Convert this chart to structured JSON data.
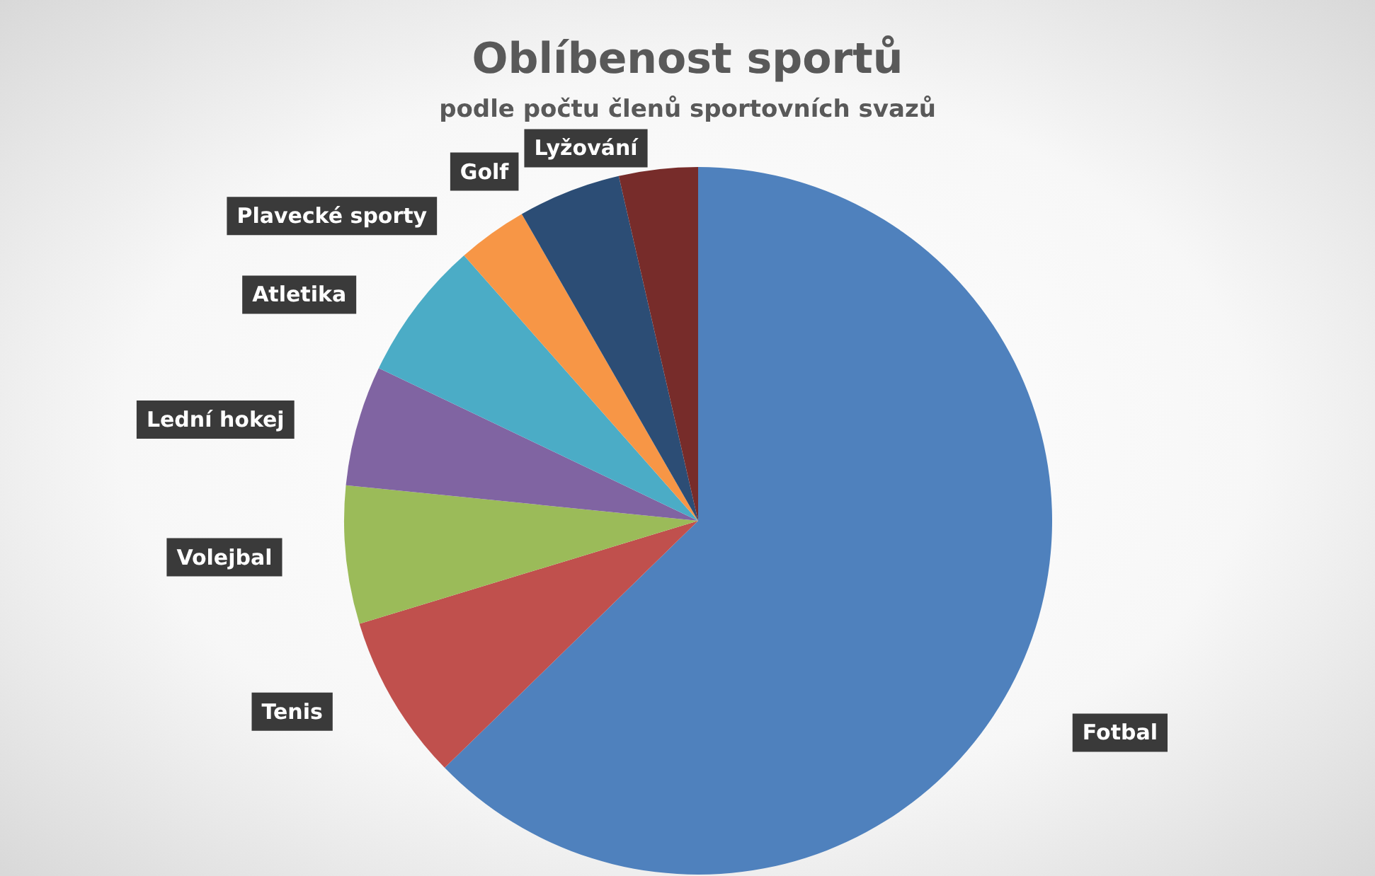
{
  "chart_data": {
    "type": "pie",
    "title": "Oblíbenost sportů",
    "subtitle": "podle počtu členů sportovních svazů",
    "categories": [
      "Fotbal",
      "Tenis",
      "Volejbal",
      "Lední hokej",
      "Atletika",
      "Plavecké sporty",
      "Golf",
      "Lyžování"
    ],
    "values": [
      62.7,
      7.6,
      6.3,
      5.5,
      6.4,
      3.2,
      4.7,
      3.6
    ],
    "colors": [
      "#4f81bd",
      "#c0504d",
      "#9bbb59",
      "#8064a2",
      "#4bacc6",
      "#f79646",
      "#2c4d75",
      "#772c2a"
    ],
    "legend": false
  }
}
